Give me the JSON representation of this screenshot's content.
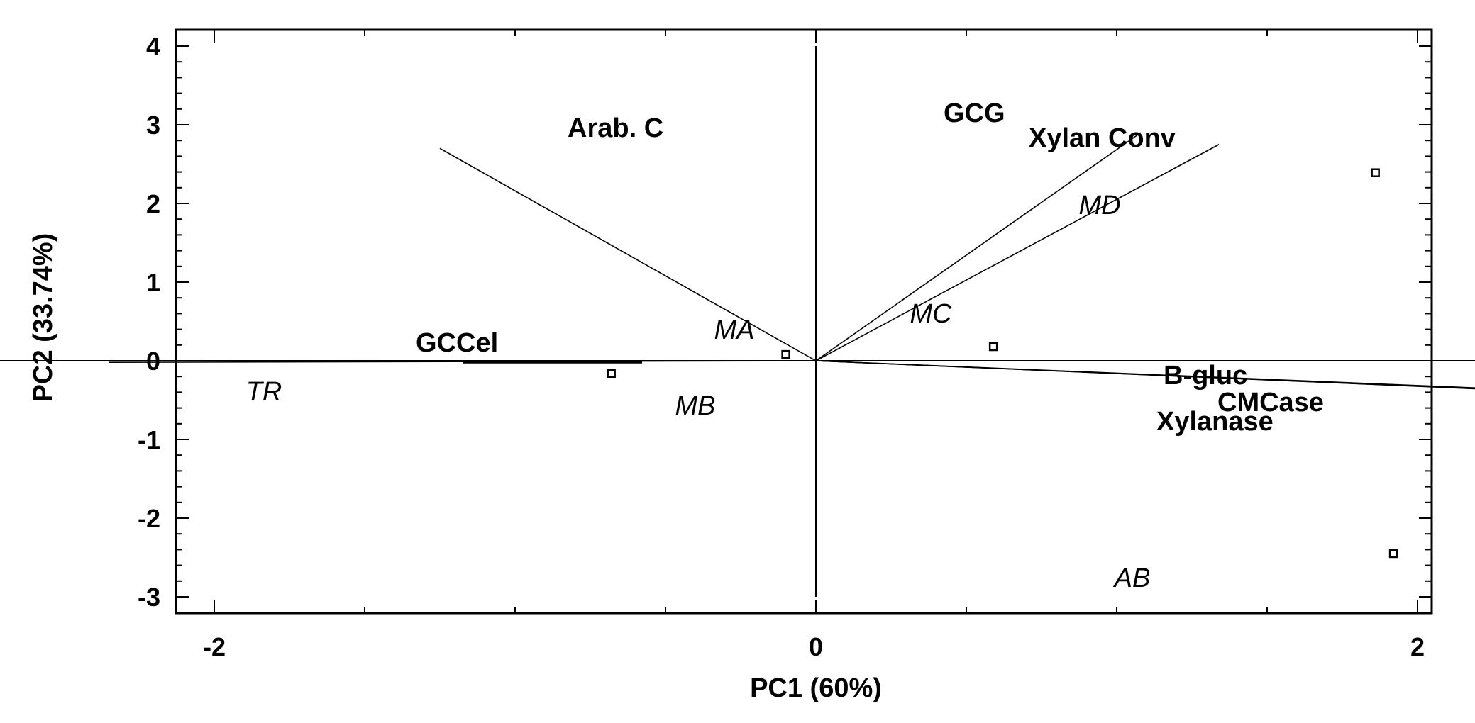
{
  "chart_data": {
    "type": "scatter",
    "subtype": "pca-biplot",
    "xlabel": "PC1 (60%)",
    "ylabel": "PC2 (33.74%)",
    "xlim": [
      -4.6,
      4.6
    ],
    "ylim": [
      -3.2,
      4.2
    ],
    "xticks": [
      -4,
      -2,
      0,
      2,
      4
    ],
    "yticks": [
      4,
      3,
      2,
      1,
      0,
      -1,
      -2,
      -3
    ],
    "grid": false,
    "observations": [
      {
        "label": "TR",
        "x": -3.62,
        "y": -0.01
      },
      {
        "label": "MB",
        "x": -0.68,
        "y": -0.16
      },
      {
        "label": "MA",
        "x": -0.1,
        "y": 0.08
      },
      {
        "label": "MC",
        "x": 0.59,
        "y": 0.18
      },
      {
        "label": "MD",
        "x": 1.86,
        "y": 2.39
      },
      {
        "label": "AB",
        "x": 1.92,
        "y": -2.45
      }
    ],
    "loadings": [
      {
        "label": "Arab. C",
        "x": -1.25,
        "y": 2.7
      },
      {
        "label": "GCG",
        "x": 1.08,
        "y": 2.9
      },
      {
        "label": "Xylan Conv",
        "x": 1.34,
        "y": 2.75
      },
      {
        "label": "GCCel",
        "x": -2.35,
        "y": -0.02
      },
      {
        "label": "B-gluc",
        "x": 2.55,
        "y": -0.4
      },
      {
        "label": "CMCase",
        "x": 2.65,
        "y": -0.43
      },
      {
        "label": "Xylanase",
        "x": 2.6,
        "y": -0.42
      }
    ]
  }
}
